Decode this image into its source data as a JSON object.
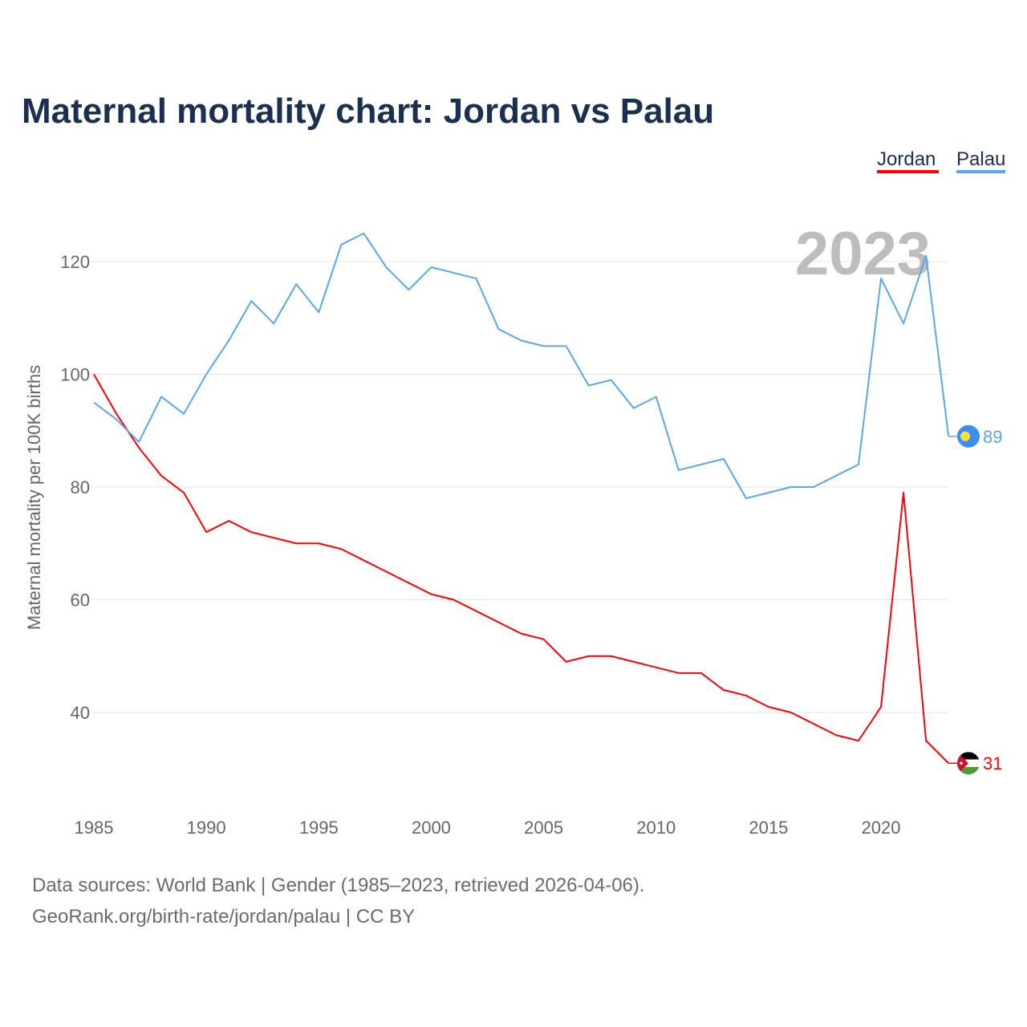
{
  "chart_data": {
    "type": "line",
    "title": "Maternal mortality chart: Jordan vs Palau",
    "xlabel": "",
    "ylabel": "Maternal mortality per 100K births",
    "xlim": [
      1985,
      2023
    ],
    "ylim": [
      25,
      135
    ],
    "x_ticks": [
      1985,
      1990,
      1995,
      2000,
      2005,
      2010,
      2015,
      2020
    ],
    "y_ticks": [
      40,
      60,
      80,
      100,
      120
    ],
    "grid": true,
    "legend_position": "top-right",
    "watermark_year": "2023",
    "x": [
      1985,
      1986,
      1987,
      1988,
      1989,
      1990,
      1991,
      1992,
      1993,
      1994,
      1995,
      1996,
      1997,
      1998,
      1999,
      2000,
      2001,
      2002,
      2003,
      2004,
      2005,
      2006,
      2007,
      2008,
      2009,
      2010,
      2011,
      2012,
      2013,
      2014,
      2015,
      2016,
      2017,
      2018,
      2019,
      2020,
      2021,
      2022,
      2023
    ],
    "series": [
      {
        "name": "Jordan",
        "color": "#ff0000",
        "end_label": "31",
        "values": [
          100,
          93,
          87,
          82,
          79,
          72,
          74,
          72,
          71,
          70,
          70,
          69,
          67,
          65,
          63,
          61,
          60,
          58,
          56,
          54,
          53,
          49,
          50,
          50,
          49,
          48,
          47,
          47,
          44,
          43,
          41,
          40,
          38,
          36,
          35,
          41,
          79,
          35,
          31
        ]
      },
      {
        "name": "Palau",
        "color": "#5ba6eb",
        "end_label": "89",
        "values": [
          95,
          92,
          88,
          96,
          93,
          100,
          106,
          113,
          109,
          116,
          111,
          123,
          125,
          119,
          115,
          119,
          118,
          117,
          108,
          106,
          105,
          105,
          98,
          99,
          94,
          96,
          83,
          84,
          85,
          78,
          79,
          80,
          80,
          82,
          84,
          117,
          109,
          121,
          89
        ]
      }
    ]
  },
  "footer": {
    "line1": "Data sources: World Bank | Gender (1985–2023, retrieved 2026-04-06).",
    "line2": "GeoRank.org/birth-rate/jordan/palau | CC BY"
  }
}
